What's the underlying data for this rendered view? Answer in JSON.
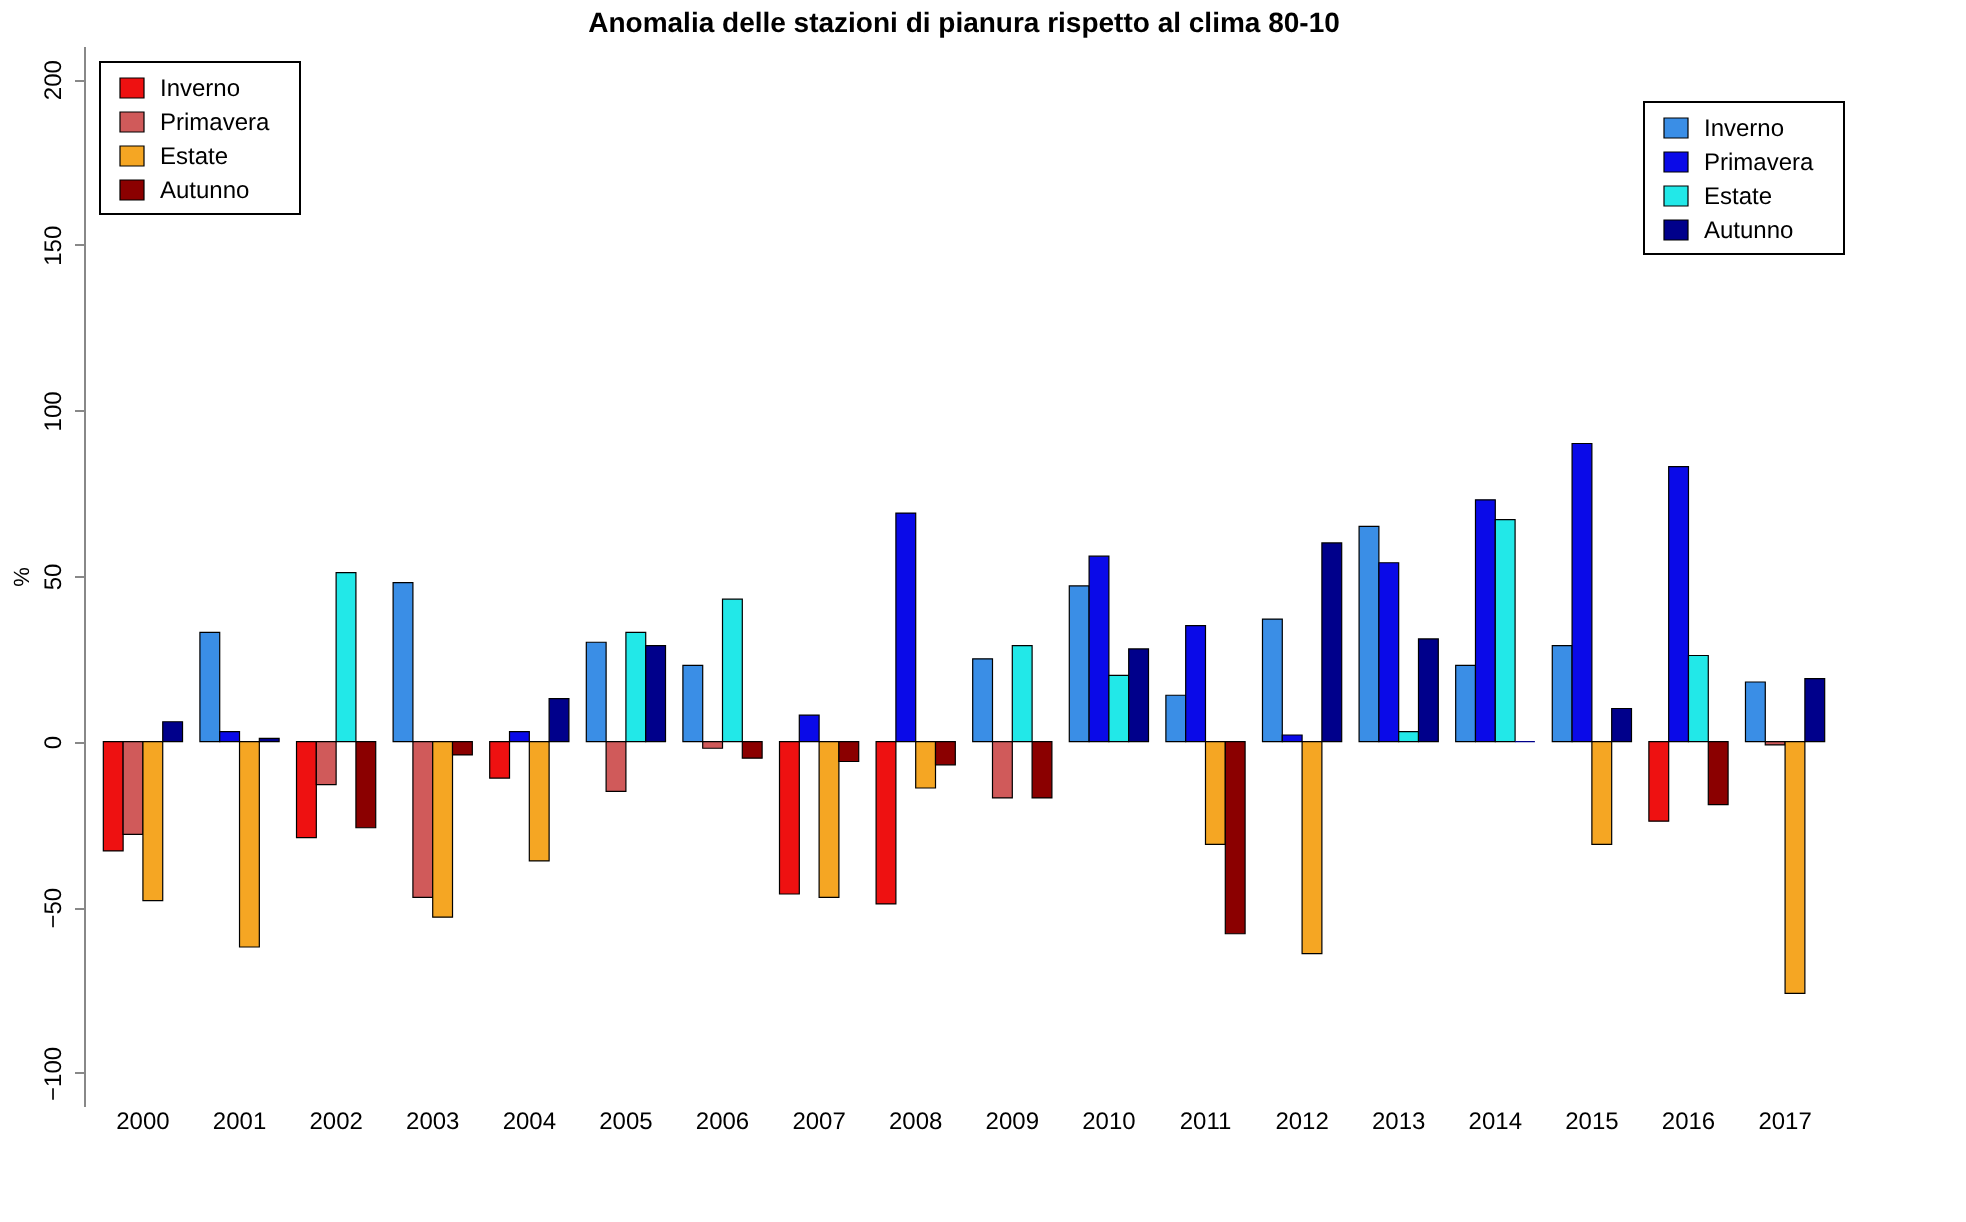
{
  "chart_data": {
    "type": "bar",
    "title": "Anomalia delle stazioni di pianura rispetto al clima 80-10",
    "ylabel": "%",
    "categories": [
      "2000",
      "2001",
      "2002",
      "2003",
      "2004",
      "2005",
      "2006",
      "2007",
      "2008",
      "2009",
      "2010",
      "2011",
      "2012",
      "2013",
      "2014",
      "2015",
      "2016",
      "2017"
    ],
    "series": [
      {
        "name": "Inverno",
        "color": "#ee1111",
        "values": [
          -33,
          null,
          -29,
          null,
          -11,
          null,
          null,
          -46,
          -49,
          null,
          null,
          null,
          null,
          null,
          null,
          null,
          -24,
          null
        ]
      },
      {
        "name": "Primavera",
        "color": "#d05a5a",
        "values": [
          -28,
          null,
          -13,
          -47,
          null,
          -15,
          -2,
          null,
          null,
          -17,
          null,
          null,
          null,
          null,
          null,
          null,
          null,
          -1
        ]
      },
      {
        "name": "Estate",
        "color": "#f5a623",
        "values": [
          -48,
          -62,
          null,
          -53,
          -36,
          null,
          null,
          -47,
          -14,
          null,
          null,
          -31,
          -64,
          null,
          null,
          -31,
          null,
          -76
        ]
      },
      {
        "name": "Autunno",
        "color": "#8b0000",
        "values": [
          null,
          null,
          -26,
          -4,
          null,
          null,
          -5,
          -6,
          -7,
          -17,
          null,
          -58,
          null,
          null,
          null,
          null,
          -19,
          null
        ]
      },
      {
        "name": "Inverno",
        "color": "#3a8ee6",
        "values": [
          null,
          33,
          null,
          48,
          null,
          30,
          23,
          null,
          null,
          25,
          47,
          14,
          37,
          65,
          23,
          29,
          null,
          18
        ]
      },
      {
        "name": "Primavera",
        "color": "#0a0ae8",
        "values": [
          null,
          3,
          null,
          null,
          3,
          null,
          null,
          8,
          69,
          null,
          56,
          35,
          2,
          54,
          73,
          90,
          83,
          null
        ]
      },
      {
        "name": "Estate",
        "color": "#22e8e8",
        "values": [
          null,
          null,
          51,
          null,
          null,
          33,
          43,
          null,
          null,
          29,
          20,
          null,
          null,
          3,
          67,
          null,
          26,
          null
        ]
      },
      {
        "name": "Autunno",
        "color": "#00008b",
        "values": [
          6,
          1,
          null,
          null,
          13,
          29,
          null,
          null,
          null,
          null,
          28,
          null,
          60,
          31,
          0,
          10,
          null,
          19
        ]
      }
    ],
    "ylim": [
      -110,
      210
    ],
    "yticks": [
      -100,
      -50,
      0,
      50,
      100,
      150,
      200
    ],
    "grid": false,
    "legend": "top"
  }
}
